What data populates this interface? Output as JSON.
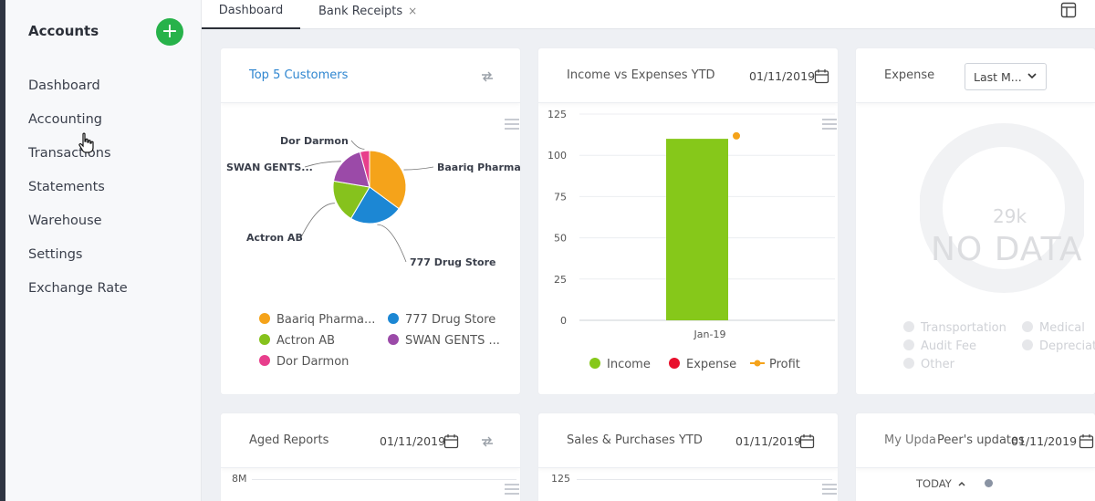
{
  "sidebar": {
    "title": "Accounts",
    "add_label": "+",
    "items": [
      "Dashboard",
      "Accounting",
      "Transactions",
      "Statements",
      "Warehouse",
      "Settings",
      "Exchange Rate"
    ]
  },
  "tabs": [
    {
      "label": "Dashboard",
      "active": true
    },
    {
      "label": "Bank Receipts",
      "close": "×"
    }
  ],
  "cards": {
    "top_customers": {
      "title": "Top 5 Customers",
      "chart_data": {
        "type": "pie",
        "title": "Top 5 Customers",
        "categories": [
          "Baariq Pharma.",
          "777 Drug Store",
          "Actron AB",
          "SWAN GENTS...",
          "Dor Darmon"
        ],
        "values": [
          33,
          22,
          18,
          17,
          4
        ],
        "colors": [
          "#f5a31a",
          "#1c87d4",
          "#86c21d",
          "#9b4aa8",
          "#e83e8c"
        ]
      },
      "slice_labels": [
        "Baariq Pharma.",
        "777 Drug Store",
        "Actron AB",
        "SWAN GENTS...",
        "Dor Darmon"
      ],
      "legend": [
        "Baariq Pharma...",
        "777 Drug Store",
        "Actron AB",
        "SWAN GENTS ...",
        "Dor Darmon"
      ]
    },
    "income_expenses": {
      "title": "Income vs Expenses YTD",
      "date": "01/11/2019",
      "chart_data": {
        "type": "bar",
        "categories": [
          "Jan-19"
        ],
        "series": [
          {
            "name": "Income",
            "values": [
              110
            ],
            "color": "#86c81a"
          },
          {
            "name": "Expense",
            "values": [
              0
            ],
            "color": "#e8102c"
          },
          {
            "name": "Profit",
            "values": [
              110
            ],
            "color": "#f5a31a"
          }
        ],
        "ylim": [
          0,
          125
        ],
        "yticks": [
          "125",
          "100",
          "75",
          "50",
          "25",
          "0"
        ],
        "grid": true,
        "legend_position": "bottom"
      },
      "legend": [
        "Income",
        "Expense",
        "Profit"
      ]
    },
    "expense": {
      "title": "Expense",
      "select_value": "Last M...",
      "center_value": "29k",
      "no_data": "NO DATA",
      "legend": [
        "Transportation",
        "Medical",
        "Audit Fee",
        "Depreciat",
        "Other"
      ]
    },
    "aged_reports": {
      "title": "Aged Reports",
      "date": "01/11/2019",
      "y_top": "8M"
    },
    "sales_purchases": {
      "title": "Sales & Purchases YTD",
      "date": "01/11/2019",
      "y_top": "125"
    },
    "updates": {
      "title_a": "My Upda",
      "title_b": "Peer's updates",
      "date": "01/11/2019",
      "today": "TODAY"
    }
  }
}
